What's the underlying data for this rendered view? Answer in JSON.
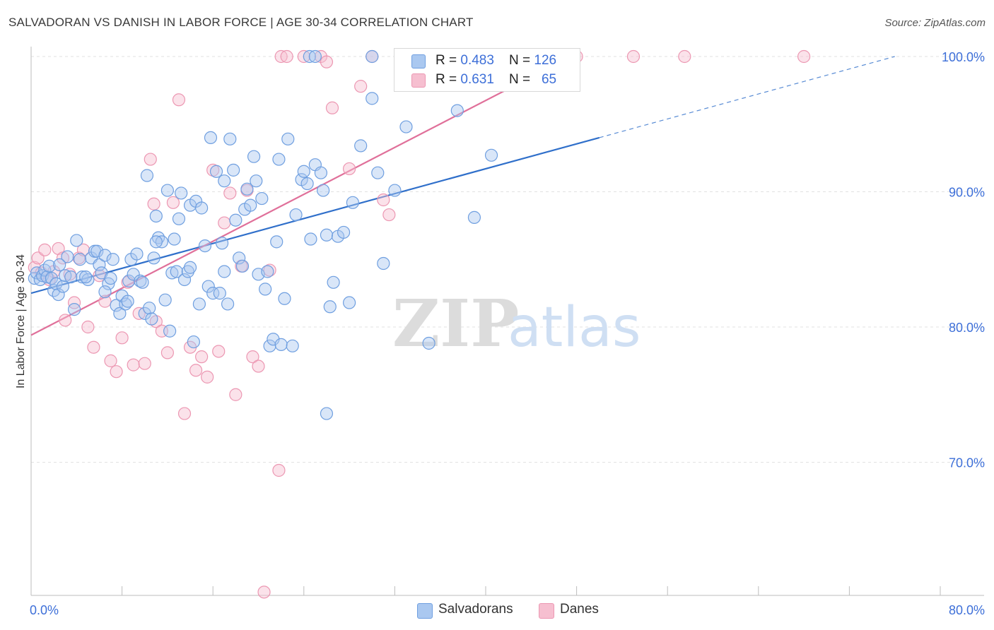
{
  "header": {
    "title": "SALVADORAN VS DANISH IN LABOR FORCE | AGE 30-34 CORRELATION CHART",
    "source": "Source: ZipAtlas.com"
  },
  "watermark": {
    "zip": "ZIP",
    "atlas": "atlas"
  },
  "colors": {
    "blue_fill": "#aac8f0",
    "blue_stroke": "#6f9fe0",
    "blue_line": "#2f6fca",
    "pink_fill": "#f6bfd0",
    "pink_stroke": "#ec97b2",
    "pink_line": "#e0709a",
    "axis_label": "#3d6fd8",
    "grid": "#e2e2e2"
  },
  "legend": {
    "rows": [
      {
        "r_label": "R = ",
        "r_value": "0.483",
        "n_label": "N = ",
        "n_value": "126",
        "color": "#aac8f0"
      },
      {
        "r_label": "R = ",
        "r_value": "0.631",
        "n_label": "N = ",
        "n_value": "65",
        "color": "#f6bfd0"
      }
    ]
  },
  "chart_data": {
    "type": "scatter",
    "title": "SALVADORAN VS DANISH IN LABOR FORCE | AGE 30-34 CORRELATION CHART",
    "xlabel": "",
    "ylabel": "In Labor Force | Age 30-34",
    "xlim": [
      0,
      80
    ],
    "ylim": [
      60,
      101.5
    ],
    "x_tick_labels": [
      {
        "value": 0,
        "label": "0.0%"
      },
      {
        "value": 80,
        "label": "80.0%"
      }
    ],
    "y_tick_labels": [
      {
        "value": 70,
        "label": "70.0%"
      },
      {
        "value": 80,
        "label": "80.0%"
      },
      {
        "value": 90,
        "label": "90.0%"
      },
      {
        "value": 100,
        "label": "100.0%"
      }
    ],
    "grid": true,
    "legend_position": "top-center",
    "series": [
      {
        "name": "Salvadorans",
        "r": 0.483,
        "n": 126,
        "trend": {
          "x0": 0,
          "y0": 82.5,
          "x1": 50,
          "y1": 94.0,
          "dash_to_x": 76,
          "dash_to_y": 100.0
        },
        "points": [
          [
            0.3,
            83.6
          ],
          [
            0.5,
            84.0
          ],
          [
            0.8,
            83.5
          ],
          [
            1.0,
            83.8
          ],
          [
            1.2,
            84.2
          ],
          [
            1.4,
            83.7
          ],
          [
            1.6,
            84.5
          ],
          [
            1.8,
            83.6
          ],
          [
            2.0,
            82.7
          ],
          [
            2.2,
            83.2
          ],
          [
            2.4,
            82.4
          ],
          [
            2.8,
            83.0
          ],
          [
            3.0,
            83.8
          ],
          [
            3.2,
            85.2
          ],
          [
            3.5,
            83.7
          ],
          [
            3.8,
            81.3
          ],
          [
            4.0,
            86.4
          ],
          [
            4.3,
            85.0
          ],
          [
            4.5,
            83.7
          ],
          [
            5.0,
            83.5
          ],
          [
            5.3,
            85.1
          ],
          [
            5.6,
            85.6
          ],
          [
            5.8,
            85.6
          ],
          [
            6.0,
            84.6
          ],
          [
            6.2,
            84.0
          ],
          [
            6.5,
            85.3
          ],
          [
            6.8,
            83.2
          ],
          [
            7.0,
            83.6
          ],
          [
            7.2,
            85.0
          ],
          [
            7.5,
            81.6
          ],
          [
            7.8,
            81.0
          ],
          [
            8.0,
            82.3
          ],
          [
            8.3,
            81.7
          ],
          [
            8.6,
            83.4
          ],
          [
            8.8,
            85.0
          ],
          [
            9.0,
            83.9
          ],
          [
            9.3,
            85.4
          ],
          [
            9.6,
            83.4
          ],
          [
            9.8,
            83.3
          ],
          [
            10.0,
            81.0
          ],
          [
            10.2,
            91.2
          ],
          [
            10.4,
            81.4
          ],
          [
            10.6,
            80.6
          ],
          [
            10.8,
            85.1
          ],
          [
            11.0,
            88.2
          ],
          [
            11.2,
            86.6
          ],
          [
            11.5,
            86.3
          ],
          [
            11.8,
            82.0
          ],
          [
            12.0,
            90.1
          ],
          [
            12.2,
            79.7
          ],
          [
            12.4,
            84.0
          ],
          [
            12.6,
            86.5
          ],
          [
            12.8,
            84.1
          ],
          [
            13.0,
            88.0
          ],
          [
            13.2,
            89.9
          ],
          [
            13.5,
            83.5
          ],
          [
            13.8,
            84.1
          ],
          [
            14.0,
            89.0
          ],
          [
            14.3,
            78.9
          ],
          [
            14.5,
            89.3
          ],
          [
            14.8,
            81.7
          ],
          [
            15.0,
            88.8
          ],
          [
            15.3,
            86.0
          ],
          [
            15.6,
            83.0
          ],
          [
            15.8,
            94.0
          ],
          [
            16.0,
            82.5
          ],
          [
            16.3,
            91.5
          ],
          [
            16.6,
            82.5
          ],
          [
            16.8,
            86.2
          ],
          [
            17.0,
            84.1
          ],
          [
            17.3,
            81.7
          ],
          [
            17.5,
            93.9
          ],
          [
            17.8,
            91.6
          ],
          [
            18.0,
            87.9
          ],
          [
            18.3,
            85.1
          ],
          [
            18.6,
            84.5
          ],
          [
            18.8,
            88.7
          ],
          [
            19.0,
            90.2
          ],
          [
            19.3,
            89.0
          ],
          [
            19.6,
            92.6
          ],
          [
            19.8,
            90.8
          ],
          [
            20.0,
            83.9
          ],
          [
            20.3,
            89.5
          ],
          [
            20.6,
            82.8
          ],
          [
            20.8,
            84.1
          ],
          [
            21.0,
            78.6
          ],
          [
            21.3,
            79.1
          ],
          [
            21.6,
            86.3
          ],
          [
            21.8,
            92.4
          ],
          [
            22.0,
            78.7
          ],
          [
            22.3,
            82.1
          ],
          [
            22.6,
            93.9
          ],
          [
            23.0,
            78.6
          ],
          [
            23.3,
            88.3
          ],
          [
            23.8,
            90.9
          ],
          [
            24.0,
            91.5
          ],
          [
            24.3,
            90.6
          ],
          [
            24.6,
            86.5
          ],
          [
            25.0,
            92.0
          ],
          [
            25.5,
            91.4
          ],
          [
            26.0,
            86.8
          ],
          [
            26.3,
            81.5
          ],
          [
            26.6,
            83.3
          ],
          [
            27.0,
            86.7
          ],
          [
            27.5,
            87.0
          ],
          [
            28.0,
            81.8
          ],
          [
            28.3,
            89.2
          ],
          [
            29.0,
            93.4
          ],
          [
            30.0,
            96.9
          ],
          [
            30.5,
            91.4
          ],
          [
            31.0,
            84.7
          ],
          [
            32.0,
            90.1
          ],
          [
            33.0,
            94.8
          ],
          [
            35.0,
            78.8
          ],
          [
            37.5,
            96.0
          ],
          [
            39.0,
            88.1
          ],
          [
            40.5,
            92.7
          ],
          [
            24.5,
            100.0
          ],
          [
            25.0,
            100.0
          ],
          [
            30.0,
            100.0
          ],
          [
            36.5,
            100.0
          ],
          [
            26.0,
            73.6
          ],
          [
            8.5,
            81.9
          ],
          [
            6.5,
            82.6
          ],
          [
            11.0,
            86.3
          ],
          [
            14.0,
            84.4
          ],
          [
            2.5,
            84.6
          ],
          [
            4.8,
            83.7
          ],
          [
            17.0,
            90.8
          ],
          [
            25.7,
            90.1
          ]
        ]
      },
      {
        "name": "Danes",
        "r": 0.631,
        "n": 65,
        "trend": {
          "x0": 0,
          "y0": 79.4,
          "x1": 47.5,
          "y1": 100.0
        },
        "points": [
          [
            0.3,
            84.4
          ],
          [
            0.6,
            85.1
          ],
          [
            0.9,
            84.0
          ],
          [
            1.2,
            85.7
          ],
          [
            1.6,
            83.5
          ],
          [
            2.0,
            84.1
          ],
          [
            2.4,
            85.8
          ],
          [
            2.8,
            85.1
          ],
          [
            3.0,
            80.5
          ],
          [
            3.4,
            83.9
          ],
          [
            3.8,
            81.8
          ],
          [
            4.2,
            85.1
          ],
          [
            4.6,
            85.7
          ],
          [
            5.0,
            80.0
          ],
          [
            5.5,
            78.5
          ],
          [
            6.0,
            83.8
          ],
          [
            6.5,
            81.9
          ],
          [
            7.0,
            77.5
          ],
          [
            7.5,
            76.7
          ],
          [
            8.0,
            79.2
          ],
          [
            8.5,
            83.3
          ],
          [
            9.0,
            77.2
          ],
          [
            9.5,
            81.0
          ],
          [
            10.0,
            77.3
          ],
          [
            10.5,
            92.4
          ],
          [
            10.8,
            89.1
          ],
          [
            11.0,
            80.4
          ],
          [
            11.5,
            79.7
          ],
          [
            12.0,
            78.1
          ],
          [
            12.5,
            89.2
          ],
          [
            13.0,
            96.8
          ],
          [
            13.5,
            73.6
          ],
          [
            14.0,
            78.5
          ],
          [
            14.5,
            76.8
          ],
          [
            15.0,
            77.8
          ],
          [
            15.5,
            76.3
          ],
          [
            16.0,
            91.6
          ],
          [
            16.5,
            78.2
          ],
          [
            17.0,
            87.7
          ],
          [
            17.5,
            89.9
          ],
          [
            18.0,
            75.0
          ],
          [
            18.5,
            84.5
          ],
          [
            19.0,
            90.1
          ],
          [
            19.5,
            77.8
          ],
          [
            20.0,
            77.1
          ],
          [
            20.5,
            60.4
          ],
          [
            21.0,
            84.2
          ],
          [
            21.8,
            69.4
          ],
          [
            22.0,
            100.0
          ],
          [
            22.5,
            100.0
          ],
          [
            24.0,
            100.0
          ],
          [
            25.5,
            100.0
          ],
          [
            26.0,
            99.6
          ],
          [
            26.5,
            96.2
          ],
          [
            28.0,
            91.7
          ],
          [
            29.0,
            97.8
          ],
          [
            30.0,
            100.0
          ],
          [
            31.0,
            89.4
          ],
          [
            31.5,
            88.3
          ],
          [
            32.5,
            100.0
          ],
          [
            37.0,
            100.0
          ],
          [
            48.0,
            100.0
          ],
          [
            53.0,
            100.0
          ],
          [
            57.5,
            100.0
          ],
          [
            68.0,
            100.0
          ]
        ]
      }
    ]
  }
}
